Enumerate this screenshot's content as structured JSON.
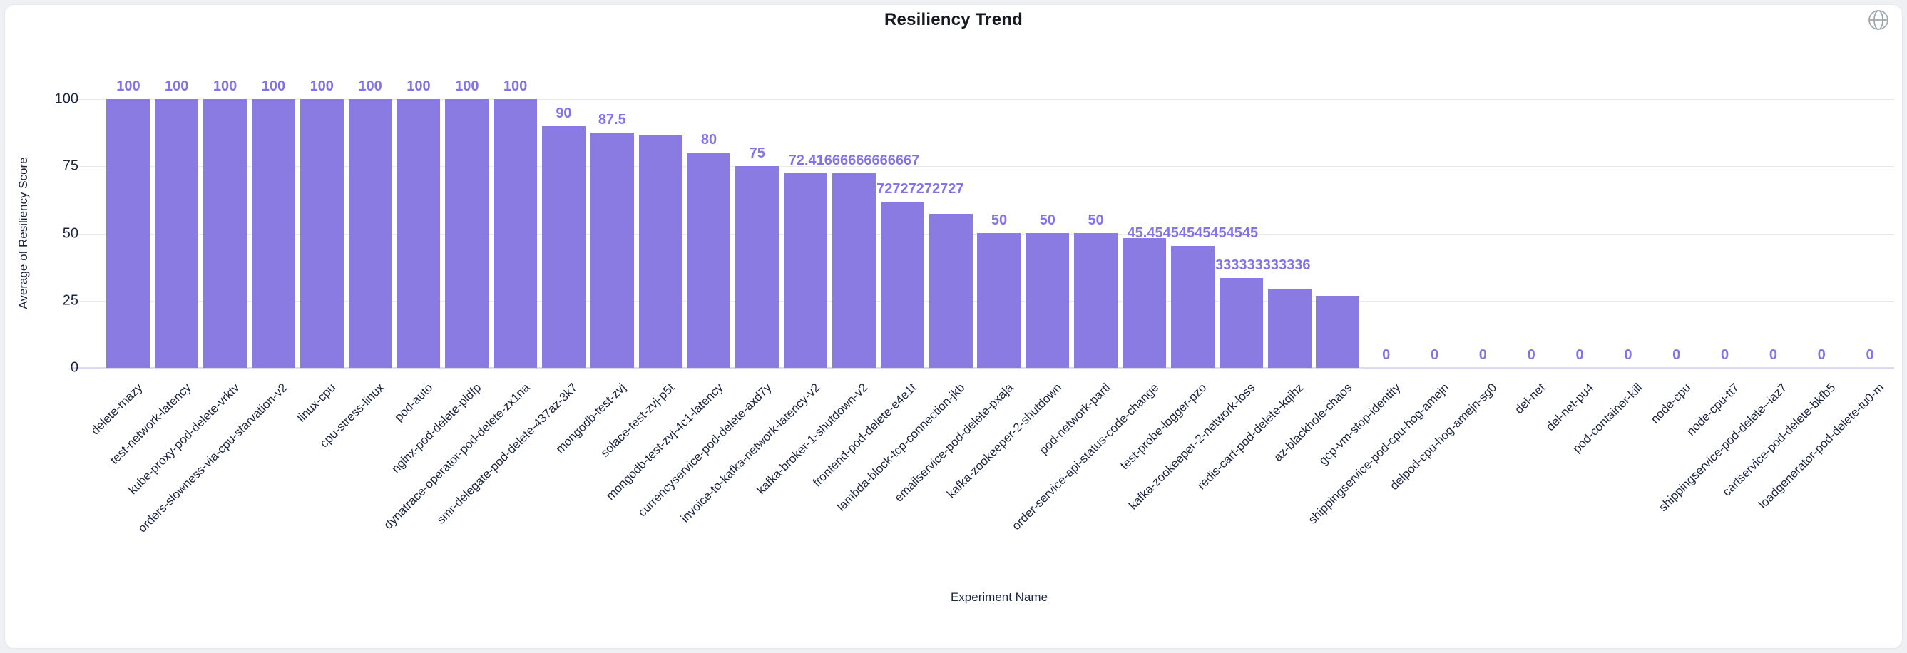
{
  "header": {
    "title": "Resiliency Trend"
  },
  "icons": {
    "globe": "globe-icon"
  },
  "colors": {
    "page_bg": "#eef0f4",
    "card_bg": "#ffffff",
    "card_border": "#e7e9ef",
    "bar": "#8a7be2",
    "value_label": "#8373e8",
    "axis_text": "#1b2440",
    "grid": "#e9e9ee",
    "baseline": "#dcdaf1",
    "globe_icon": "#9da5ae"
  },
  "chart_data": {
    "type": "bar",
    "title": "Resiliency Trend",
    "xlabel": "Experiment Name",
    "ylabel": "Average of Resiliency Score",
    "ylim": [
      0,
      100
    ],
    "y_ticks": [
      "100",
      "75",
      "50",
      "25",
      "0"
    ],
    "grid": "horizontal",
    "legend": "none",
    "categories": [
      "delete-rnazy",
      "test-network-latency",
      "kube-proxy-pod-delete-vrktv",
      "orders-slowness-via-cpu-starvation-v2",
      "linux-cpu",
      "cpu-stress-linux",
      "pod-auto",
      "nginx-pod-delete-pldfp",
      "dynatrace-operator-pod-delete-zx1na",
      "smr-delegate-pod-delete-437az-3k7",
      "mongodb-test-zvj",
      "solace-test-zvj-p5t",
      "mongodb-test-zvj-4c1-latency",
      "currencyservice-pod-delete-axd7y",
      "invoice-to-kafka-network-latency-v2",
      "kafka-broker-1-shutdown-v2",
      "frontend-pod-delete-e4e1t",
      "lambda-block-tcp-connection-jkb",
      "emailservice-pod-delete-pxaja",
      "kafka-zookeeper-2-shutdown",
      "pod-network-parti",
      "order-service-api-status-code-change",
      "test-probe-logger-pzo",
      "kafka-zookeeper-2-network-loss",
      "redis-cart-pod-delete-kqihz",
      "az-blackhole-chaos",
      "gcp-vm-stop-identity",
      "shippingservice-pod-cpu-hog-amejn",
      "delpod-cpu-hog-amejn-sg0",
      "del-net",
      "del-net-pu4",
      "pod-container-kill",
      "node-cpu",
      "node-cpu-tt7",
      "shippingservice-pod-delete--iaz7",
      "cartservice-pod-delete-bkfb5",
      "loadgenerator-pod-delete-tu0-m"
    ],
    "values": [
      100,
      100,
      100,
      100,
      100,
      100,
      100,
      100,
      100,
      90,
      87.5,
      86.6,
      80,
      75,
      72.7,
      72.41666666666667,
      61.73,
      57.3,
      50,
      50,
      50,
      48.2,
      45.45454545454545,
      33.333333333333336,
      29.5,
      26.7,
      0,
      0,
      0,
      0,
      0,
      0,
      0,
      0,
      0,
      0,
      0
    ],
    "bar_labels": [
      "100",
      "100",
      "100",
      "100",
      "100",
      "100",
      "100",
      "100",
      "100",
      "90",
      "87.5",
      "",
      "80",
      "75",
      "",
      "72.41666666666667",
      "61.7272727272727",
      "",
      "50",
      "50",
      "50",
      "",
      "45.45454545454545",
      "33.333333333333336",
      "",
      "",
      "0",
      "0",
      "0",
      "0",
      "0",
      "0",
      "0",
      "0",
      "0",
      "0",
      "0"
    ]
  }
}
